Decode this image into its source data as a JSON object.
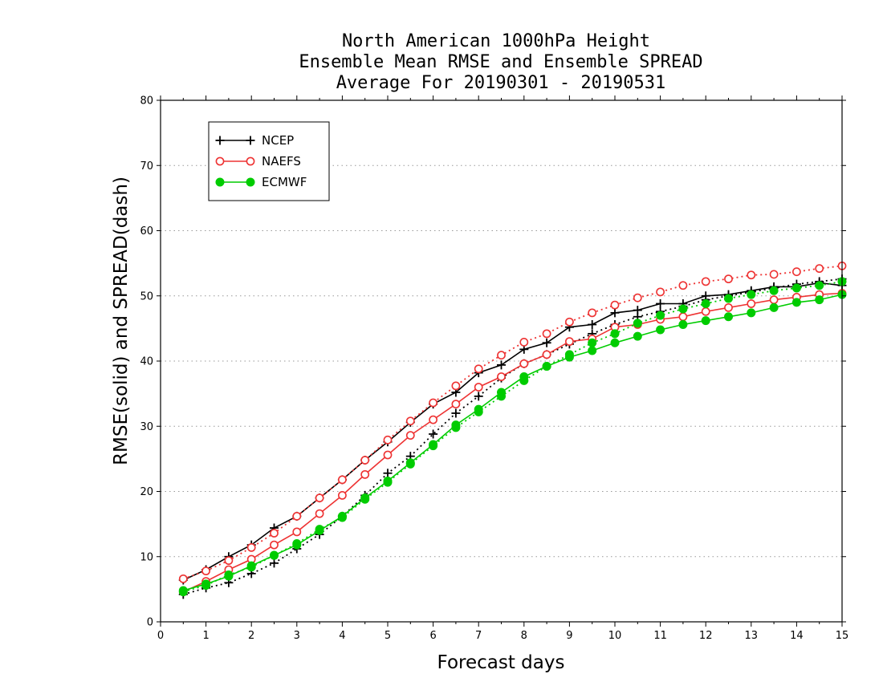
{
  "chart_data": {
    "type": "line",
    "title_lines": [
      "North American 1000hPa Height",
      "Ensemble Mean RMSE and Ensemble SPREAD",
      "Average For 20190301 - 20190531"
    ],
    "xlabel": "Forecast days",
    "ylabel": "RMSE(solid) and SPREAD(dash)",
    "xlim": [
      0,
      15
    ],
    "ylim": [
      0,
      80
    ],
    "xticks": [
      0,
      1,
      2,
      3,
      4,
      5,
      6,
      7,
      8,
      9,
      10,
      11,
      12,
      13,
      14,
      15
    ],
    "yticks": [
      0,
      10,
      20,
      30,
      40,
      50,
      60,
      70,
      80
    ],
    "grid": "horizontal dotted",
    "legend_position": "top-left",
    "x": [
      0.5,
      1,
      1.5,
      2,
      2.5,
      3,
      3.5,
      4,
      4.5,
      5,
      5.5,
      6,
      6.5,
      7,
      7.5,
      8,
      8.5,
      9,
      9.5,
      10,
      10.5,
      11,
      11.5,
      12,
      12.5,
      13,
      13.5,
      14,
      14.5,
      15
    ],
    "series": [
      {
        "name": "NCEP",
        "color": "#000000",
        "marker": "plus",
        "rmse": [
          6.4,
          8.0,
          10.0,
          11.8,
          14.4,
          16.2,
          19.0,
          21.8,
          24.8,
          27.6,
          30.6,
          33.4,
          35.2,
          38.2,
          39.4,
          41.8,
          42.8,
          45.2,
          45.6,
          47.4,
          47.8,
          48.8,
          48.8,
          50.0,
          50.2,
          50.8,
          51.4,
          51.4,
          52.0,
          51.6
        ],
        "spread": [
          4.2,
          5.2,
          6.0,
          7.4,
          9.0,
          11.2,
          13.4,
          16.2,
          19.4,
          22.8,
          25.4,
          28.8,
          32.0,
          34.6,
          37.4,
          39.6,
          41.0,
          42.6,
          44.2,
          45.6,
          46.8,
          47.6,
          48.4,
          49.4,
          50.0,
          50.6,
          51.2,
          51.8,
          52.2,
          52.6
        ]
      },
      {
        "name": "NAEFS",
        "color": "#ee3333",
        "marker": "open-circle",
        "rmse": [
          4.6,
          6.2,
          8.0,
          9.6,
          11.8,
          13.8,
          16.6,
          19.4,
          22.6,
          25.6,
          28.6,
          31.0,
          33.4,
          36.0,
          37.6,
          39.6,
          41.0,
          43.0,
          43.4,
          45.2,
          45.6,
          46.4,
          46.8,
          47.6,
          48.2,
          48.8,
          49.4,
          49.8,
          50.2,
          50.4
        ],
        "spread": [
          6.6,
          7.8,
          9.4,
          11.4,
          13.6,
          16.2,
          19.0,
          21.8,
          24.8,
          27.9,
          30.8,
          33.6,
          36.2,
          38.8,
          40.9,
          42.9,
          44.2,
          46.0,
          47.4,
          48.6,
          49.7,
          50.6,
          51.6,
          52.2,
          52.6,
          53.2,
          53.3,
          53.7,
          54.2,
          54.6
        ]
      },
      {
        "name": "ECMWF",
        "color": "#00cc00",
        "marker": "filled-circle",
        "rmse": [
          4.8,
          5.8,
          7.0,
          8.6,
          10.2,
          11.8,
          14.0,
          16.2,
          19.0,
          21.6,
          24.4,
          27.2,
          30.2,
          32.6,
          35.2,
          37.6,
          39.2,
          40.6,
          41.6,
          42.8,
          43.8,
          44.8,
          45.6,
          46.2,
          46.8,
          47.4,
          48.2,
          49.0,
          49.4,
          50.2
        ],
        "spread": [
          4.6,
          5.6,
          7.2,
          8.4,
          10.2,
          12.0,
          14.2,
          16.0,
          18.8,
          21.4,
          24.2,
          27.0,
          29.8,
          32.2,
          34.6,
          37.0,
          39.2,
          41.0,
          42.8,
          44.2,
          45.8,
          47.0,
          48.0,
          48.8,
          49.6,
          50.2,
          50.8,
          51.2,
          51.6,
          52.2
        ]
      }
    ]
  }
}
